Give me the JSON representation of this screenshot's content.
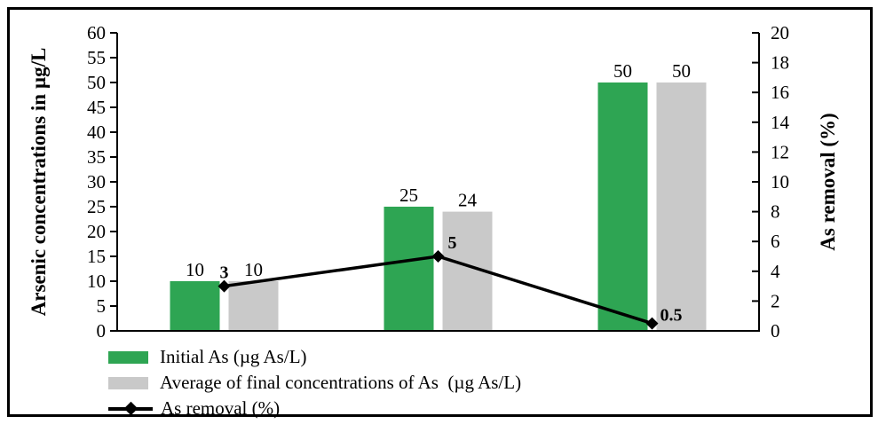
{
  "chart_data": {
    "type": "bar",
    "subtype": "bar-line-combo",
    "title": "",
    "categories": [
      "",
      "",
      ""
    ],
    "series": [
      {
        "name": "Initial As (µg As/L)",
        "type": "bar",
        "color": "#2ea553",
        "axis": "left",
        "values": [
          10,
          25,
          50
        ],
        "data_labels": [
          "10",
          "25",
          "50"
        ]
      },
      {
        "name": "Average of final concentrations of As  (µg As/L)",
        "type": "bar",
        "color": "#c9c9c9",
        "axis": "left",
        "values": [
          10,
          24,
          50
        ],
        "data_labels": [
          "10",
          "24",
          "50"
        ]
      },
      {
        "name": "As removal (%)",
        "type": "line",
        "marker": "diamond",
        "color": "#000000",
        "axis": "right",
        "values": [
          3,
          5,
          0.5
        ],
        "data_labels": [
          "3",
          "5",
          "0.5"
        ]
      }
    ],
    "left_axis": {
      "label": "Arsenic concentrations in µg/L",
      "min": 0,
      "max": 60,
      "step": 5,
      "tick_labels": [
        "0",
        "5",
        "10",
        "15",
        "20",
        "25",
        "30",
        "35",
        "40",
        "45",
        "50",
        "55",
        "60"
      ]
    },
    "right_axis": {
      "label": "As removal (%)",
      "min": 0,
      "max": 20,
      "step": 2,
      "tick_labels": [
        "0",
        "2",
        "4",
        "6",
        "8",
        "10",
        "12",
        "14",
        "16",
        "18",
        "20"
      ]
    },
    "grid": "off",
    "legend": {
      "position": "bottom-left",
      "entries": [
        {
          "swatch": "bar",
          "color": "#2ea553",
          "label": "Initial As (µg As/L)"
        },
        {
          "swatch": "bar",
          "color": "#c9c9c9",
          "label": "Average of final concentrations of As  (µg As/L)"
        },
        {
          "swatch": "line-diamond",
          "color": "#000000",
          "label": "As removal (%)"
        }
      ]
    }
  },
  "colors": {
    "frame_border": "#000000",
    "background": "#ffffff",
    "bar_green": "#2ea553",
    "bar_gray": "#c9c9c9",
    "line_black": "#000000"
  }
}
